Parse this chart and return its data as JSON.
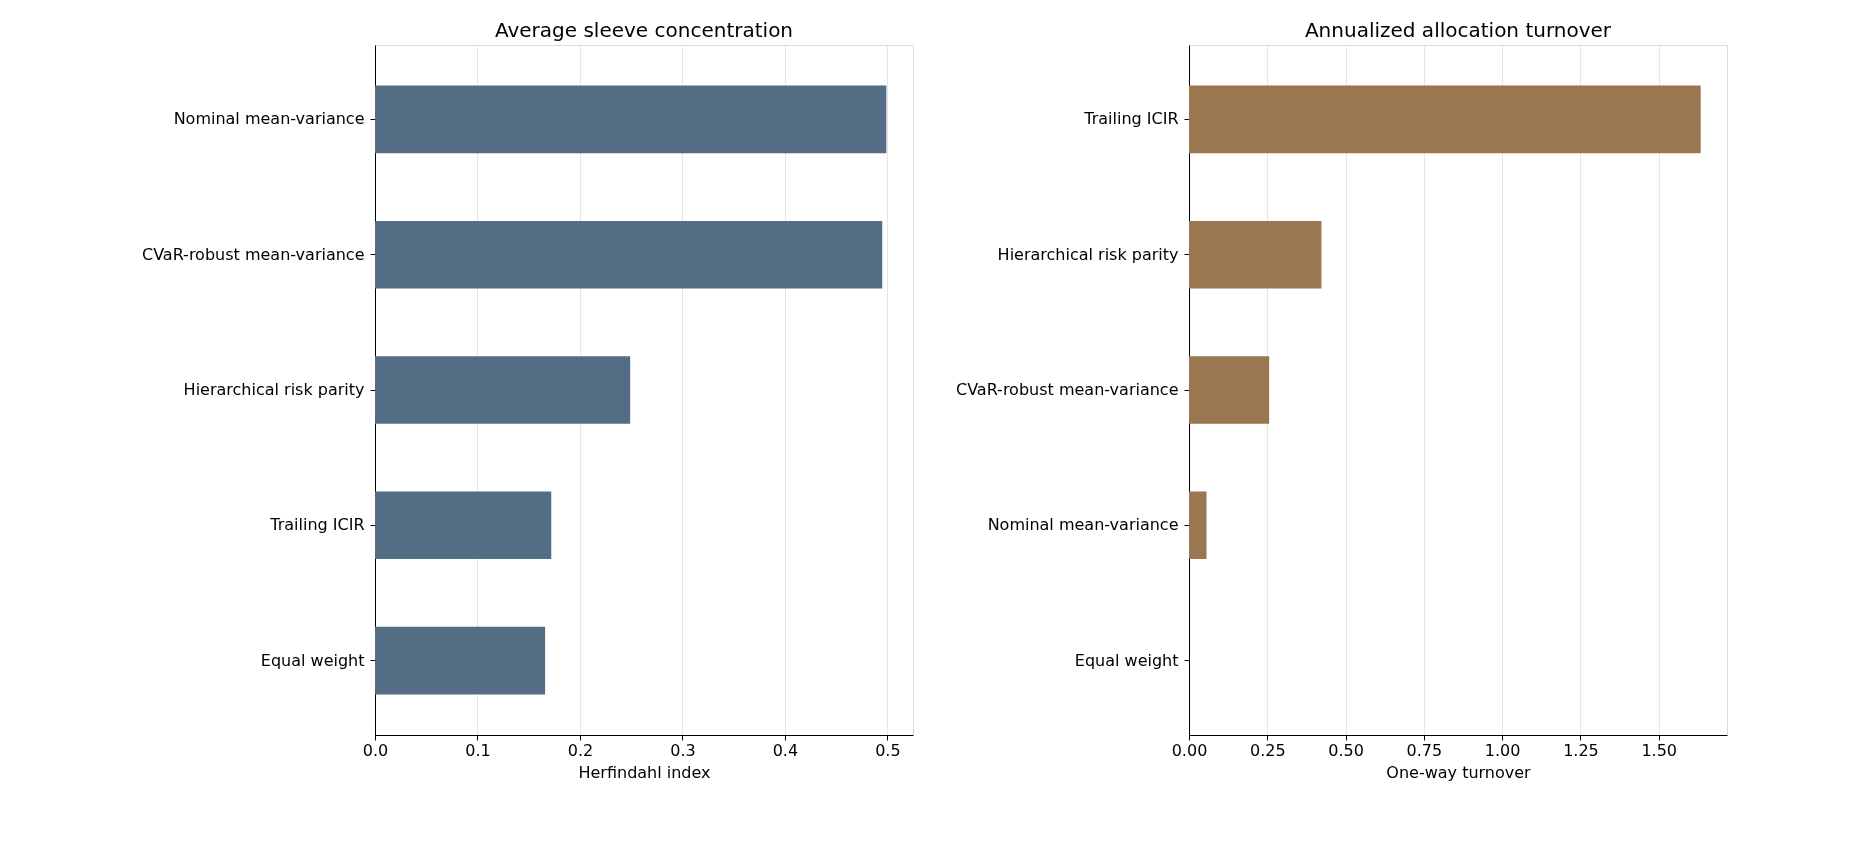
{
  "chart_data": [
    {
      "type": "bar",
      "orientation": "horizontal",
      "title": "Average sleeve concentration",
      "xlabel": "Herfindahl index",
      "categories": [
        "Nominal mean-variance",
        "CVaR-robust mean-variance",
        "Hierarchical risk parity",
        "Trailing ICIR",
        "Equal weight"
      ],
      "values": [
        0.499,
        0.495,
        0.249,
        0.172,
        0.166
      ],
      "color": "#536e84",
      "xlim": [
        0,
        0.525
      ],
      "xticks": [
        {
          "value": 0,
          "label": "0.0"
        },
        0.1,
        0.2,
        0.3,
        0.4,
        0.5
      ],
      "grid": "x"
    },
    {
      "type": "bar",
      "orientation": "horizontal",
      "title": "Annualized allocation turnover",
      "xlabel": "One-way turnover",
      "categories": [
        "Trailing ICIR",
        "Hierarchical risk parity",
        "CVaR-robust mean-variance",
        "Nominal mean-variance",
        "Equal weight"
      ],
      "values": [
        1.634,
        0.423,
        0.256,
        0.056,
        0
      ],
      "color": "#9a7651",
      "xlim": [
        0,
        1.718
      ],
      "xticks": [
        {
          "value": 0,
          "label": "0.00"
        },
        0.25,
        {
          "value": 0.5,
          "label": "0.50"
        },
        0.75,
        {
          "value": 1,
          "label": "1.00"
        },
        1.25,
        {
          "value": 1.5,
          "label": "1.50"
        }
      ],
      "grid": "x"
    }
  ]
}
